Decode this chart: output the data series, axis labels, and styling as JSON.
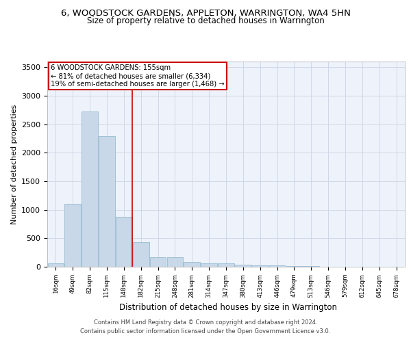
{
  "title": "6, WOODSTOCK GARDENS, APPLETON, WARRINGTON, WA4 5HN",
  "subtitle": "Size of property relative to detached houses in Warrington",
  "xlabel": "Distribution of detached houses by size in Warrington",
  "ylabel": "Number of detached properties",
  "bar_color": "#c8d8e8",
  "bar_edge_color": "#8ab4cc",
  "grid_color": "#d0d8e8",
  "background_color": "#eef2fa",
  "annotation_line1": "6 WOODSTOCK GARDENS: 155sqm",
  "annotation_line2": "← 81% of detached houses are smaller (6,334)",
  "annotation_line3": "19% of semi-detached houses are larger (1,468) →",
  "annotation_box_color": "#ffffff",
  "annotation_border_color": "#cc0000",
  "vline_color": "#cc0000",
  "bin_labels": [
    "16sqm",
    "49sqm",
    "82sqm",
    "115sqm",
    "148sqm",
    "182sqm",
    "215sqm",
    "248sqm",
    "281sqm",
    "314sqm",
    "347sqm",
    "380sqm",
    "413sqm",
    "446sqm",
    "479sqm",
    "513sqm",
    "546sqm",
    "579sqm",
    "612sqm",
    "645sqm",
    "678sqm"
  ],
  "bar_values": [
    55,
    1100,
    2730,
    2290,
    880,
    430,
    170,
    165,
    85,
    60,
    55,
    40,
    30,
    20,
    15,
    10,
    5,
    5,
    5,
    3,
    2
  ],
  "ylim": [
    0,
    3600
  ],
  "yticks": [
    0,
    500,
    1000,
    1500,
    2000,
    2500,
    3000,
    3500
  ],
  "footer1": "Contains HM Land Registry data © Crown copyright and database right 2024.",
  "footer2": "Contains public sector information licensed under the Open Government Licence v3.0."
}
